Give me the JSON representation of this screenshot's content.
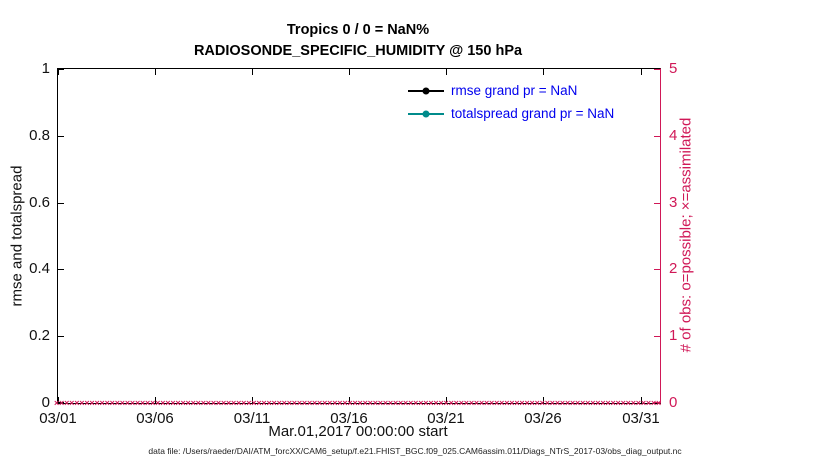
{
  "figure": {
    "title_line1": "Tropics 0 / 0 = NaN%",
    "title_line2": "RADIOSONDE_SPECIFIC_HUMIDITY @ 150 hPa",
    "footer": "data file: /Users/raeder/DAI/ATM_forcXX/CAM6_setup/f.e21.FHIST_BGC.f09_025.CAM6assim.011/Diags_NTrS_2017-03/obs_diag_output.nc"
  },
  "chart_data": {
    "type": "line",
    "title": "Tropics 0 / 0 = NaN%",
    "subtitle": "RADIOSONDE_SPECIFIC_HUMIDITY @ 150 hPa",
    "xlabel": "Mar.01,2017 00:00:00 start",
    "ylabel_left": "rmse and totalspread",
    "ylabel_right": "# of obs: o=possible; ×=assimilated",
    "x_tick_labels": [
      "03/01",
      "03/06",
      "03/11",
      "03/16",
      "03/21",
      "03/26",
      "03/31"
    ],
    "x_tick_days": [
      0,
      5,
      10,
      15,
      20,
      25,
      30
    ],
    "x_range_days": [
      0,
      31
    ],
    "ylim_left": [
      0,
      1
    ],
    "y_left_ticks": [
      "0",
      "0.2",
      "0.4",
      "0.6",
      "0.8",
      "1"
    ],
    "ylim_right": [
      0,
      5
    ],
    "y_right_ticks": [
      "0",
      "1",
      "2",
      "3",
      "4",
      "5"
    ],
    "grid": false,
    "legend_position": "top-right-inside",
    "series": [
      {
        "name": "rmse grand pr = NaN",
        "color": "#000000",
        "marker": "point",
        "values": []
      },
      {
        "name": "totalspread grand pr = NaN",
        "color": "#008b8b",
        "marker": "point",
        "values": []
      },
      {
        "name": "assimilated observations",
        "symbol": "×",
        "color": "#d01857",
        "y_right_value": 0,
        "marker_count": 120
      }
    ],
    "legend": [
      {
        "label": "rmse grand pr = NaN",
        "line_color": "#000000"
      },
      {
        "label": "totalspread grand pr = NaN",
        "line_color": "#008b8b"
      }
    ],
    "colors": {
      "right_axis": "#d01857",
      "legend_text": "#0000ee",
      "axis": "#000000"
    }
  }
}
